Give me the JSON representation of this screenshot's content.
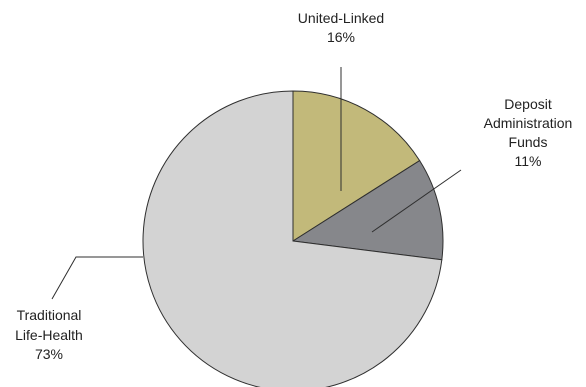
{
  "chart_data": {
    "type": "pie",
    "title": "",
    "slices": [
      {
        "label_lines": [
          "United-Linked"
        ],
        "pct_label": "16%",
        "value": 16,
        "color": "#c2b97a"
      },
      {
        "label_lines": [
          "Deposit",
          "Administration",
          "Funds"
        ],
        "pct_label": "11%",
        "value": 11,
        "color": "#86878b"
      },
      {
        "label_lines": [
          "Traditional",
          "Life-Health"
        ],
        "pct_label": "73%",
        "value": 73,
        "color": "#d3d3d3"
      }
    ]
  }
}
